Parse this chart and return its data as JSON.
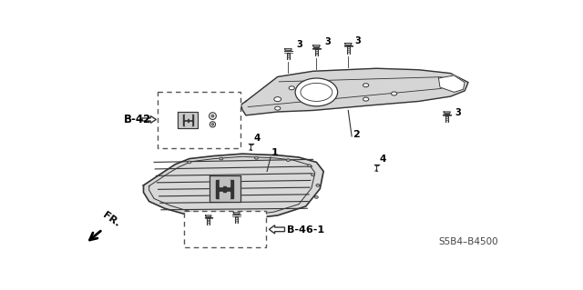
{
  "bg_color": "#ffffff",
  "line_color": "#333333",
  "text_color": "#000000",
  "fill_color": "#d8d8d8",
  "labels": {
    "B42": "B-42",
    "B461": "B-46-1",
    "FR": "FR.",
    "ref_code": "S5B4–B4500"
  }
}
